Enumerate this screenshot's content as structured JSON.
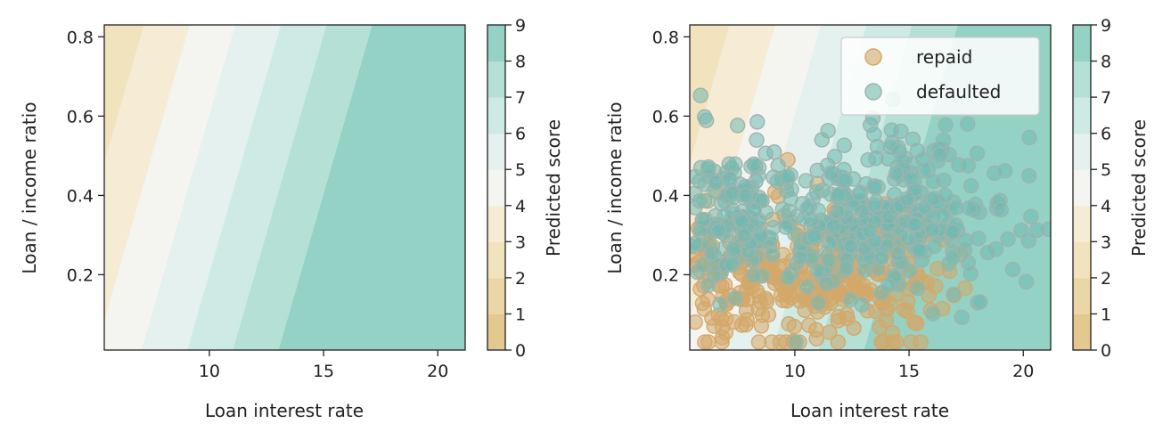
{
  "chart_data": [
    {
      "type": "contour",
      "title": "",
      "xlabel": "Loan interest rate",
      "ylabel": "Loan / income ratio",
      "xlim": [
        5.4,
        21.2
      ],
      "ylim": [
        0.01,
        0.83
      ],
      "xticks": [
        "10",
        "15",
        "20"
      ],
      "yticks": [
        "0.2",
        "0.4",
        "0.6",
        "0.8"
      ],
      "colorbar": {
        "label": "Predicted score",
        "ticks": [
          "0",
          "1",
          "2",
          "3",
          "4",
          "5",
          "6",
          "7",
          "8",
          "9"
        ],
        "levels": [
          0,
          1,
          2,
          3,
          4,
          5,
          6,
          7,
          8,
          9
        ],
        "colors": [
          "#e3c98f",
          "#ebd6a6",
          "#f2e3bf",
          "#f6ecd6",
          "#f4f4f1",
          "#e4f1ee",
          "#cdeae4",
          "#b4e0d6",
          "#93d2c4"
        ]
      },
      "score_model": {
        "intercept": 1.5,
        "per_rate": 0.5,
        "per_ratio": -2.5
      }
    },
    {
      "type": "contour+scatter",
      "title": "",
      "xlabel": "Loan interest rate",
      "ylabel": "Loan / income ratio",
      "xlim": [
        5.4,
        21.2
      ],
      "ylim": [
        0.01,
        0.83
      ],
      "xticks": [
        "10",
        "15",
        "20"
      ],
      "yticks": [
        "0.2",
        "0.4",
        "0.6",
        "0.8"
      ],
      "legend": {
        "position": "top-right",
        "entries": [
          "repaid",
          "defaulted"
        ]
      },
      "series": [
        {
          "name": "repaid",
          "color": "#d4a869"
        },
        {
          "name": "defaulted",
          "color": "#6fbab0"
        }
      ],
      "colorbar": {
        "label": "Predicted score",
        "ticks": [
          "0",
          "1",
          "2",
          "3",
          "4",
          "5",
          "6",
          "7",
          "8",
          "9"
        ]
      }
    }
  ]
}
